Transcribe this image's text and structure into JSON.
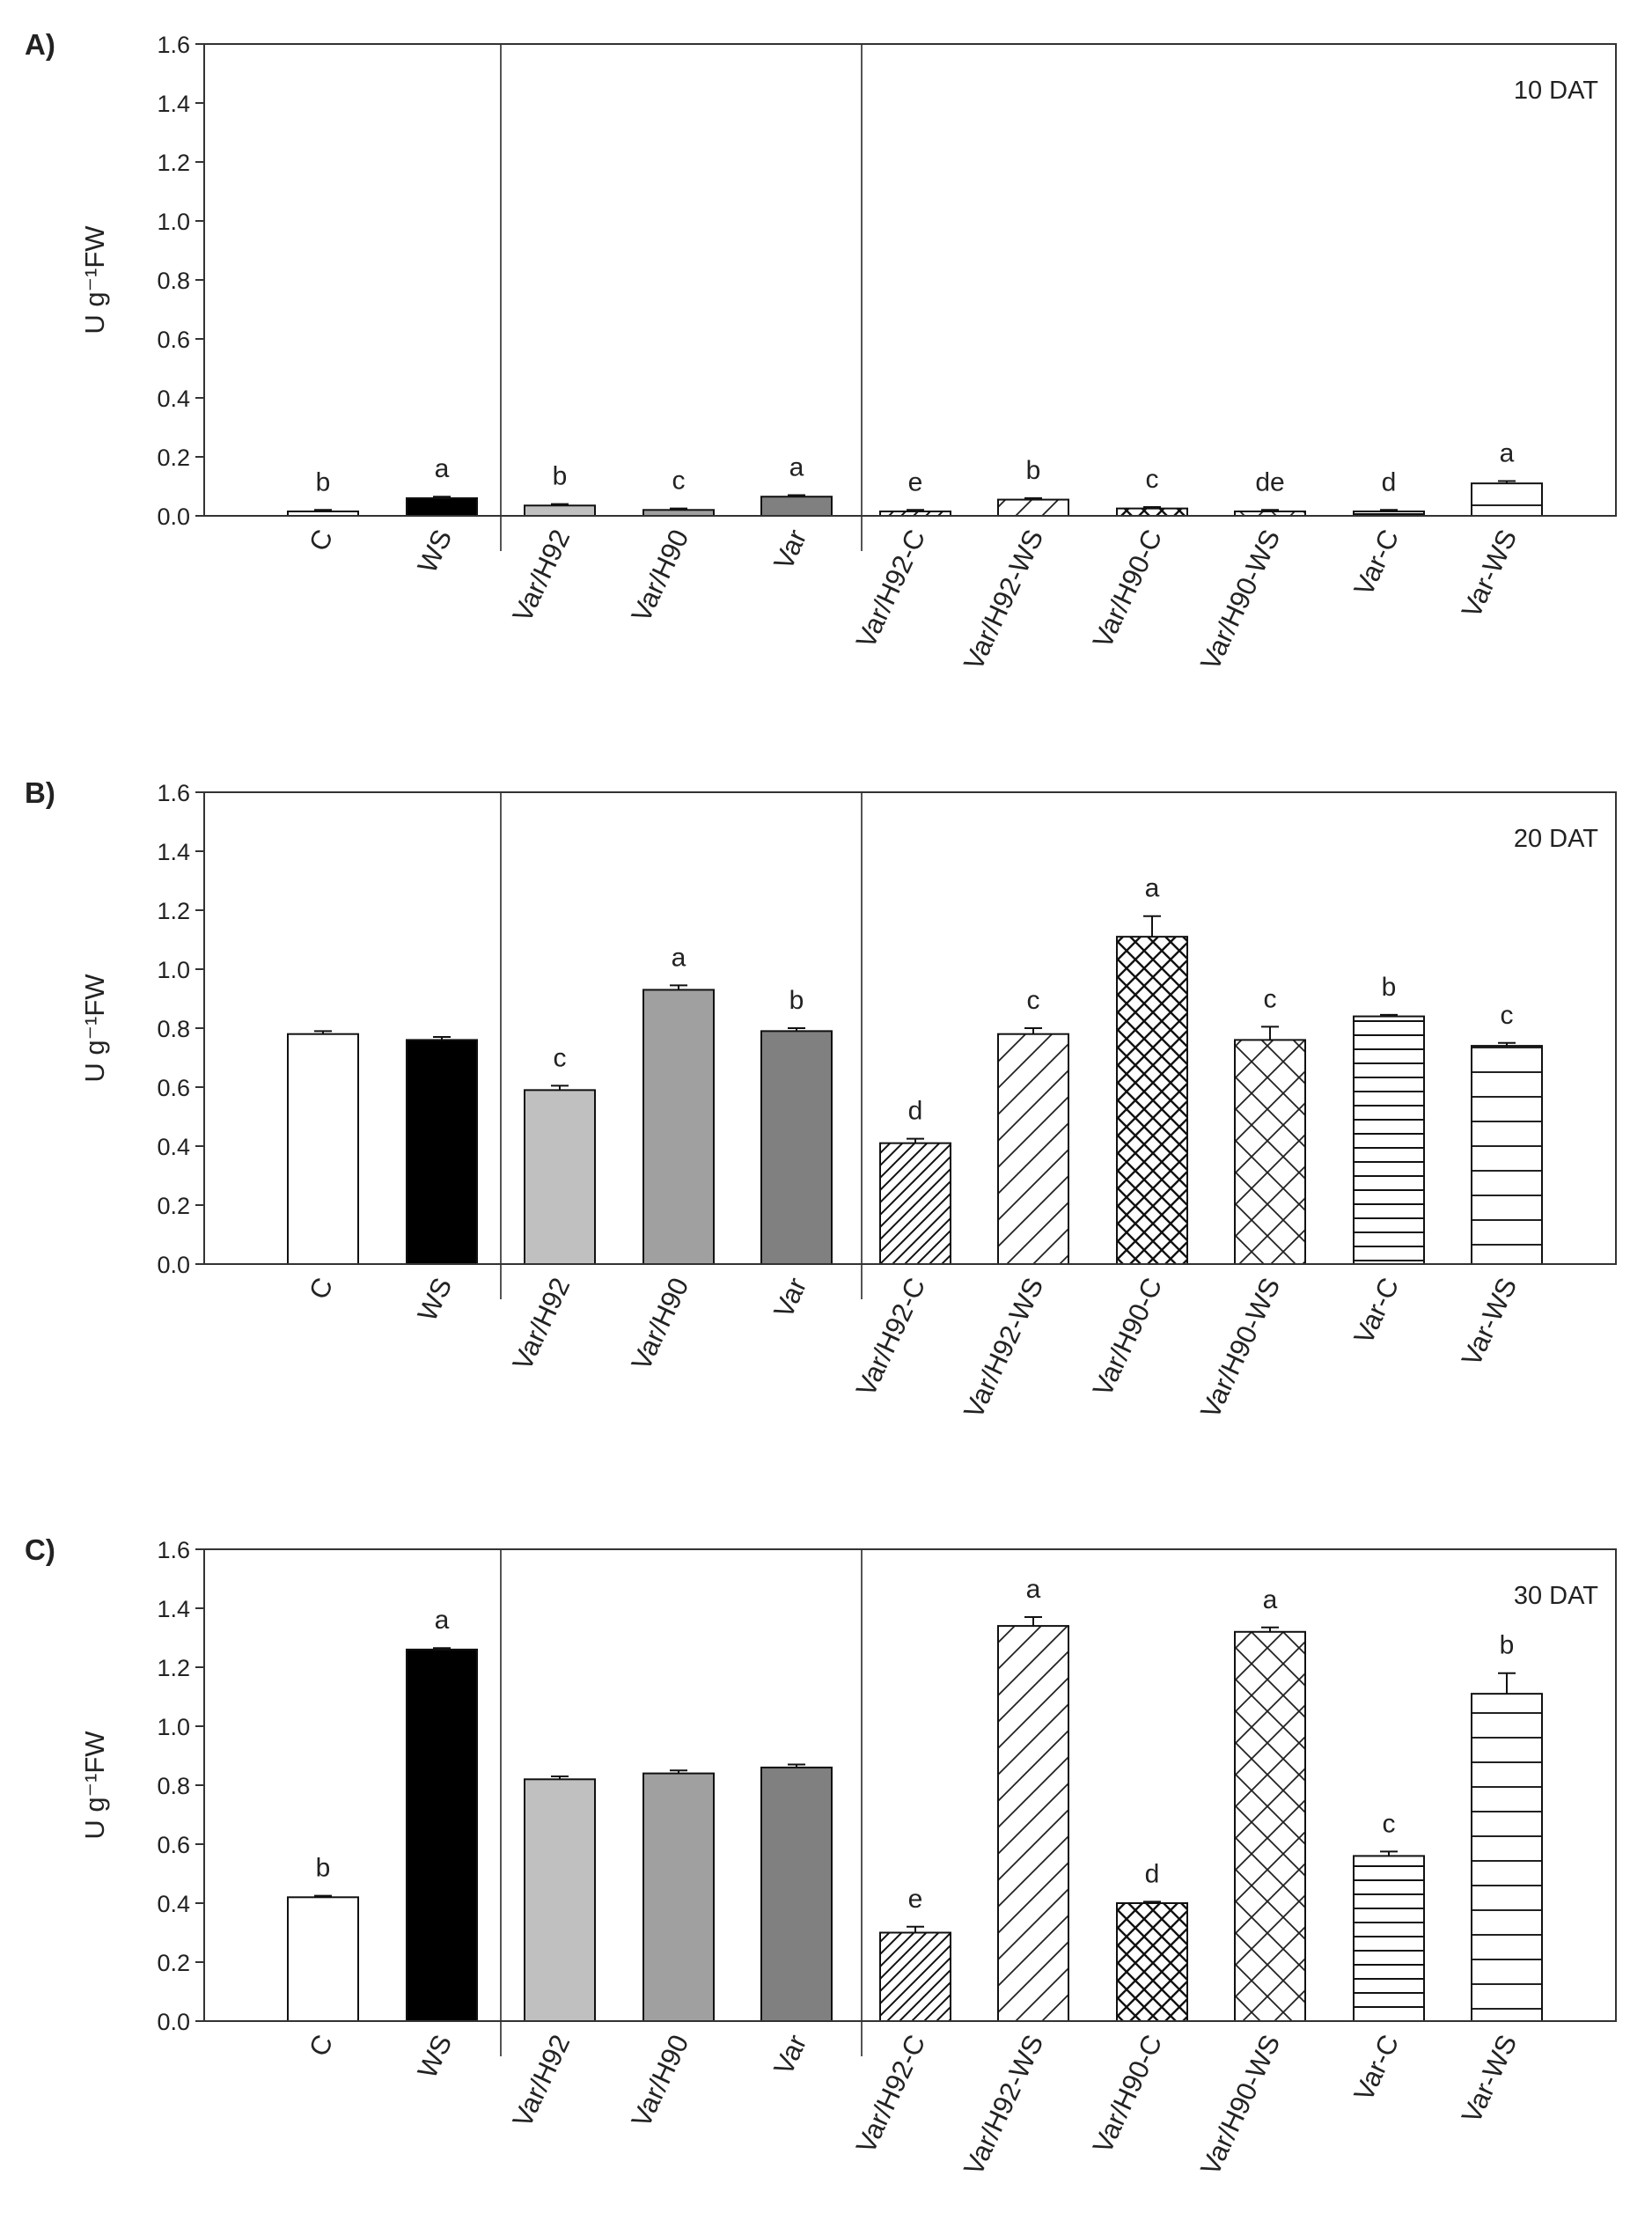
{
  "chart_data": [
    {
      "type": "bar",
      "panel": "A)",
      "title": "10 DAT",
      "ylabel": "U g⁻¹FW",
      "ylim": [
        0,
        1.6
      ],
      "yticks": [
        "0.0",
        "0.2",
        "0.4",
        "0.6",
        "0.8",
        "1.0",
        "1.2",
        "1.4",
        "1.6"
      ],
      "categories": [
        "C",
        "WS",
        "Var/H92",
        "Var/H90",
        "Var",
        "Var/H92-C",
        "Var/H92-WS",
        "Var/H90-C",
        "Var/H90-WS",
        "Var-C",
        "Var-WS"
      ],
      "values": [
        0.015,
        0.06,
        0.035,
        0.02,
        0.065,
        0.015,
        0.055,
        0.025,
        0.015,
        0.015,
        0.11
      ],
      "errors": [
        0.005,
        0.005,
        0.005,
        0.005,
        0.005,
        0.005,
        0.005,
        0.005,
        0.005,
        0.005,
        0.008
      ],
      "significance": [
        "b",
        "a",
        "b",
        "c",
        "a",
        "e",
        "b",
        "c",
        "de",
        "d",
        "a"
      ]
    },
    {
      "type": "bar",
      "panel": "B)",
      "title": "20 DAT",
      "ylabel": "U g⁻¹FW",
      "ylim": [
        0,
        1.6
      ],
      "yticks": [
        "0.0",
        "0.2",
        "0.4",
        "0.6",
        "0.8",
        "1.0",
        "1.2",
        "1.4",
        "1.6"
      ],
      "categories": [
        "C",
        "WS",
        "Var/H92",
        "Var/H90",
        "Var",
        "Var/H92-C",
        "Var/H92-WS",
        "Var/H90-C",
        "Var/H90-WS",
        "Var-C",
        "Var-WS"
      ],
      "values": [
        0.78,
        0.76,
        0.59,
        0.93,
        0.79,
        0.41,
        0.78,
        1.11,
        0.76,
        0.84,
        0.74
      ],
      "errors": [
        0.01,
        0.01,
        0.015,
        0.015,
        0.01,
        0.015,
        0.02,
        0.07,
        0.045,
        0.005,
        0.01
      ],
      "significance": [
        "",
        "",
        "c",
        "a",
        "b",
        "d",
        "c",
        "a",
        "c",
        "b",
        "c"
      ]
    },
    {
      "type": "bar",
      "panel": "C)",
      "title": "30 DAT",
      "ylabel": "U g⁻¹FW",
      "ylim": [
        0,
        1.6
      ],
      "yticks": [
        "0.0",
        "0.2",
        "0.4",
        "0.6",
        "0.8",
        "1.0",
        "1.2",
        "1.4",
        "1.6"
      ],
      "categories": [
        "C",
        "WS",
        "Var/H92",
        "Var/H90",
        "Var",
        "Var/H92-C",
        "Var/H92-WS",
        "Var/H90-C",
        "Var/H90-WS",
        "Var-C",
        "Var-WS"
      ],
      "values": [
        0.42,
        1.26,
        0.82,
        0.84,
        0.86,
        0.3,
        1.34,
        0.4,
        1.32,
        0.56,
        1.11
      ],
      "errors": [
        0.005,
        0.005,
        0.01,
        0.01,
        0.01,
        0.02,
        0.03,
        0.005,
        0.015,
        0.015,
        0.07
      ],
      "significance": [
        "b",
        "a",
        "",
        "",
        "",
        "e",
        "a",
        "d",
        "a",
        "c",
        "b"
      ]
    }
  ],
  "colors": {
    "axis": "#333333",
    "separator": "#555555",
    "bar_white": "#ffffff",
    "bar_black": "#000000",
    "bar_light_gray": "#c0c0c0",
    "bar_mid_gray": "#a0a0a0",
    "bar_dark_gray": "#808080"
  },
  "fills": [
    "white",
    "black",
    "lightgray",
    "midgray",
    "darkgray",
    "diagdense",
    "diagsparse",
    "crossdense",
    "crosssparse",
    "hlinesdense",
    "hlinessparse"
  ]
}
